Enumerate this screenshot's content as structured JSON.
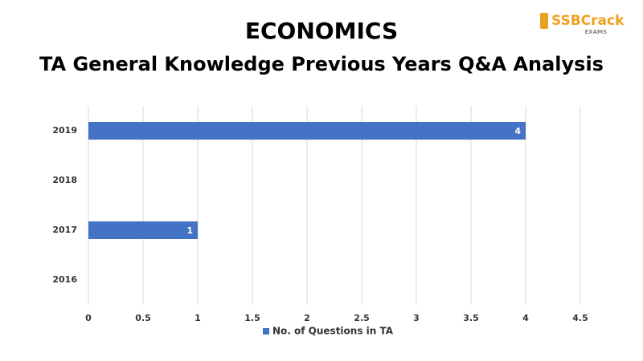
{
  "chart_data": {
    "type": "hbar",
    "title": "ECONOMICS",
    "subtitle": "TA General Knowledge Previous Years Q&A Analysis",
    "categories": [
      "2019",
      "2018",
      "2017",
      "2016"
    ],
    "series": [
      {
        "name": "No. of Questions in TA",
        "color": "#4472c4",
        "values": [
          4,
          null,
          1,
          null
        ]
      }
    ],
    "xlim": [
      0,
      4.5
    ],
    "xticks": [
      0,
      0.5,
      1,
      1.5,
      2,
      2.5,
      3,
      3.5,
      4,
      4.5
    ],
    "grid": true,
    "legend": "bottom"
  },
  "logo": {
    "name": "SSBCrack",
    "sub": "EXAMS"
  }
}
